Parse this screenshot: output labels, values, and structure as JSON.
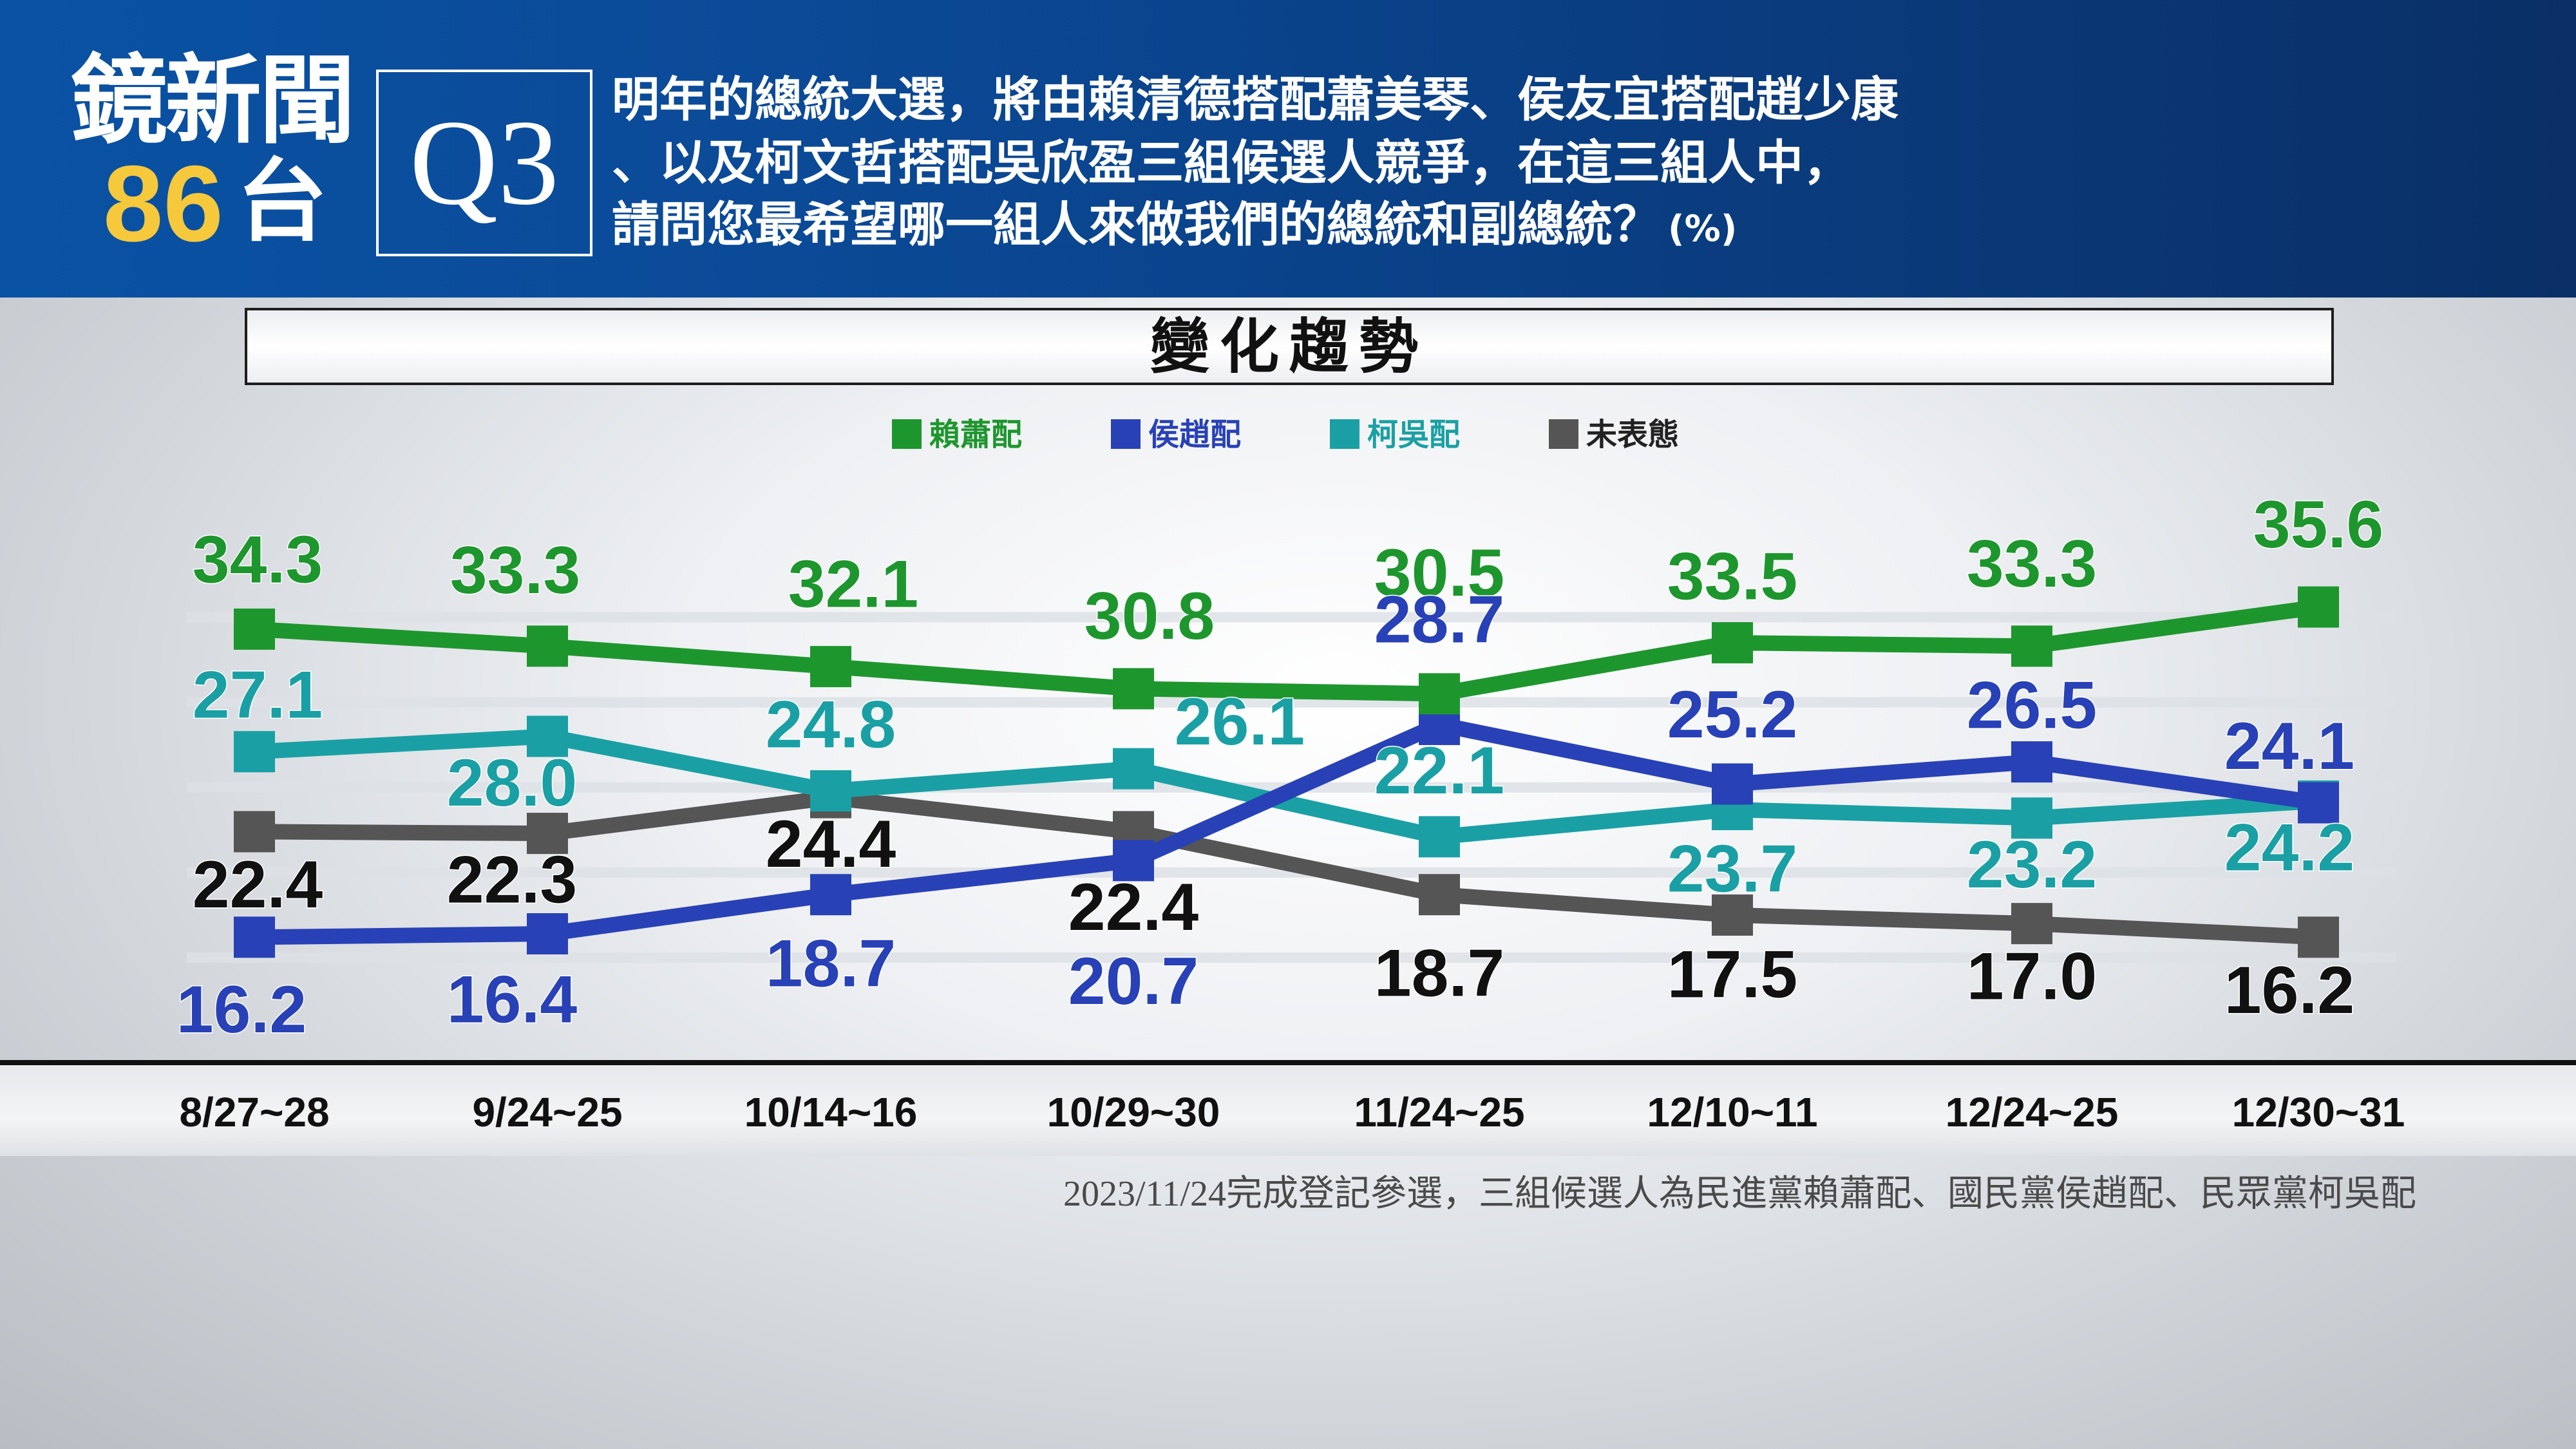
{
  "logo": {
    "name": "鏡新聞",
    "number": "86",
    "suffix": "台"
  },
  "question": {
    "id": "Q3",
    "lines": [
      "明年的總統大選，將由賴清德搭配蕭美琴、侯友宜搭配趙少康",
      "、以及柯文哲搭配吳欣盈三組候選人競爭，在這三組人中，",
      "請問您最希望哪一組人來做我們的總統和副總統？"
    ],
    "unit": "(%)"
  },
  "chart_title": "變化趨勢",
  "footnote": "2023/11/24完成登記參選，三組候選人為民進黨賴蕭配、國民黨侯趙配、民眾黨柯吳配",
  "colors": {
    "lai_hsiao": "#1e962e",
    "hou_chao": "#2841b6",
    "ko_wu": "#1aa0a4",
    "undecided": "#555555",
    "header_bg": "#0a4a97",
    "logo_accent": "#f6c83b"
  },
  "chart_data": {
    "type": "line",
    "title": "變化趨勢",
    "categories": [
      "8/27~28",
      "9/24~25",
      "10/14~16",
      "10/29~30",
      "11/24~25",
      "12/10~11",
      "12/24~25",
      "12/30~31"
    ],
    "unit": "%",
    "legend_position": "top-center",
    "grid": true,
    "series": [
      {
        "name": "賴蕭配",
        "color": "#1e962e",
        "label_color": "#1e962e",
        "values": [
          34.3,
          33.3,
          32.1,
          30.8,
          30.5,
          33.5,
          33.3,
          35.6
        ]
      },
      {
        "name": "侯趙配",
        "color": "#2841b6",
        "label_color": "#2841b6",
        "values": [
          16.2,
          16.4,
          18.7,
          20.7,
          28.7,
          25.2,
          26.5,
          24.1
        ]
      },
      {
        "name": "柯吳配",
        "color": "#1aa0a4",
        "label_color": "#1aa0a4",
        "values": [
          27.1,
          28.0,
          24.8,
          26.1,
          22.1,
          23.7,
          23.2,
          24.2
        ]
      },
      {
        "name": "未表態",
        "color": "#555555",
        "label_color": "#111111",
        "values": [
          22.4,
          22.3,
          24.4,
          22.4,
          18.7,
          17.5,
          17.0,
          16.2
        ]
      }
    ]
  }
}
